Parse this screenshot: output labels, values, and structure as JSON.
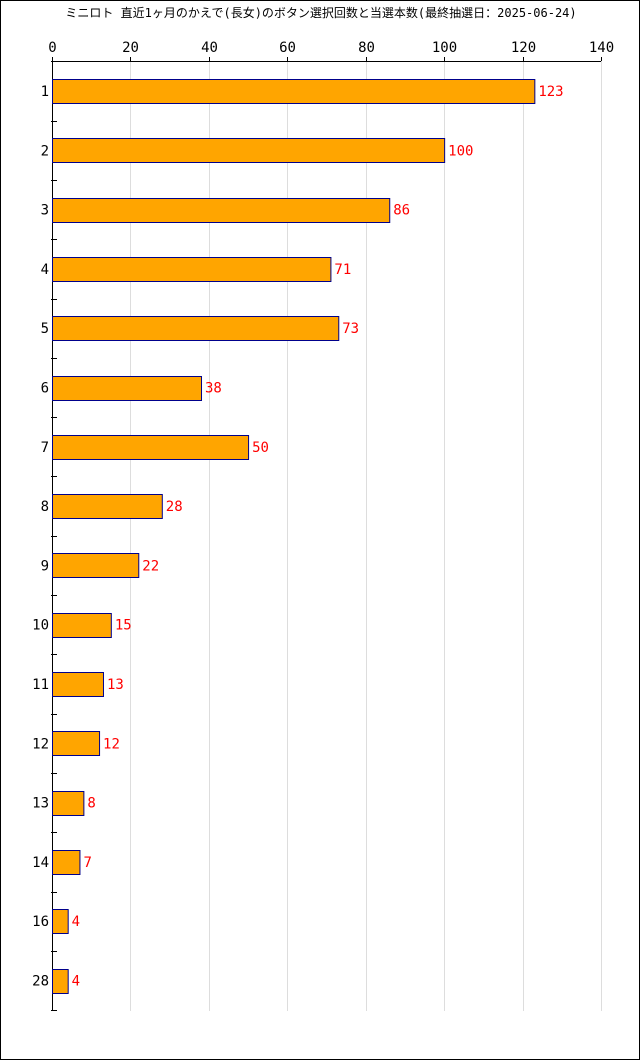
{
  "chart_data": {
    "type": "bar",
    "orientation": "horizontal",
    "title": "ミニロト 直近1ヶ月のかえで(長女)のボタン選択回数と当選本数(最終抽選日：2025-06-24)",
    "categories": [
      "1",
      "2",
      "3",
      "4",
      "5",
      "6",
      "7",
      "8",
      "9",
      "10",
      "11",
      "12",
      "13",
      "14",
      "16",
      "28"
    ],
    "values": [
      123,
      100,
      86,
      71,
      73,
      38,
      50,
      28,
      22,
      15,
      13,
      12,
      8,
      7,
      4,
      4
    ],
    "xlim": [
      0,
      140
    ],
    "xticks": [
      0,
      20,
      40,
      60,
      80,
      100,
      120,
      140
    ],
    "x_axis_position": "top",
    "grid": "vertical",
    "xlabel": "",
    "ylabel": "",
    "colors": {
      "bar_fill": "#FFA500",
      "bar_stroke": "#00008B",
      "value_label": "#FF0000",
      "grid": "#DDDDDD",
      "axis": "#000000"
    }
  }
}
